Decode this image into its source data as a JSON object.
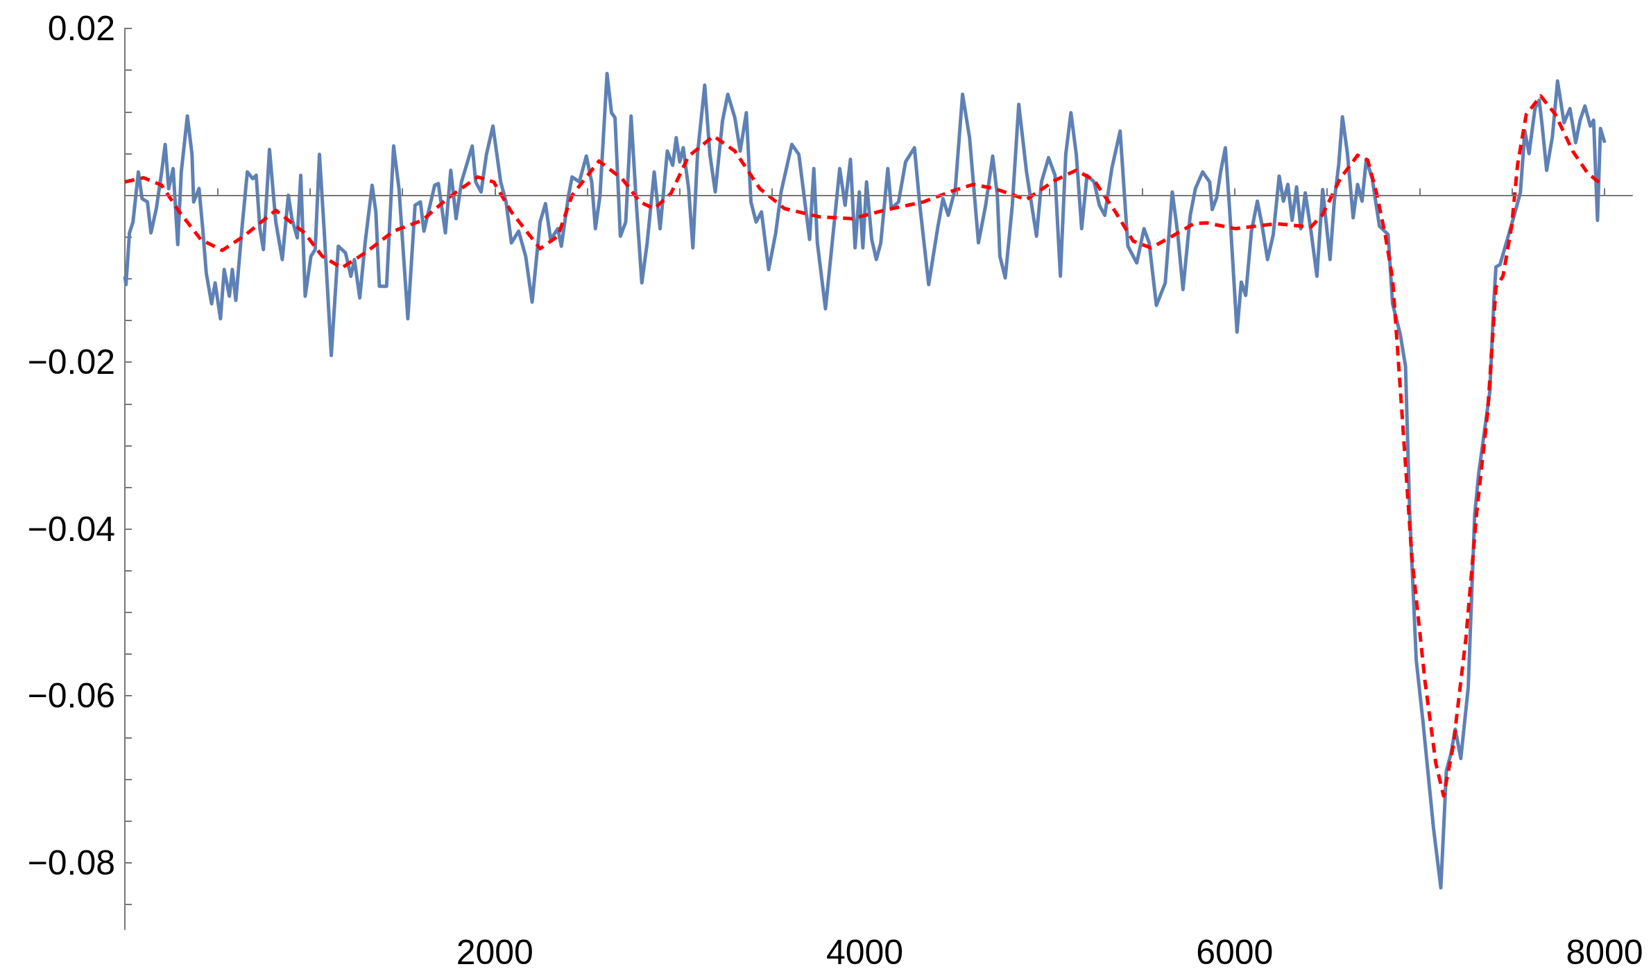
{
  "chart_data": {
    "type": "line",
    "marker": "none",
    "xlim": [
      0,
      8150
    ],
    "ylim": [
      -0.088,
      0.02
    ],
    "xticks": [
      {
        "value": 500,
        "label": null
      },
      {
        "value": 1000,
        "label": null
      },
      {
        "value": 1500,
        "label": null
      },
      2000,
      {
        "value": 2500,
        "label": null
      },
      {
        "value": 3000,
        "label": null
      },
      {
        "value": 3500,
        "label": null
      },
      4000,
      {
        "value": 4500,
        "label": null
      },
      {
        "value": 5000,
        "label": null
      },
      {
        "value": 5500,
        "label": null
      },
      6000,
      {
        "value": 6500,
        "label": null
      },
      {
        "value": 7000,
        "label": null
      },
      {
        "value": 7500,
        "label": null
      },
      8000
    ],
    "yticks": [
      0.02,
      {
        "value": 0.015,
        "label": null
      },
      {
        "value": 0.01,
        "label": null
      },
      {
        "value": 0.005,
        "label": null
      },
      {
        "value": 0,
        "label": null
      },
      {
        "value": -0.005,
        "label": null
      },
      {
        "value": -0.01,
        "label": null
      },
      {
        "value": -0.015,
        "label": null
      },
      {
        "value": -0.02,
        "label": "−0.02"
      },
      {
        "value": -0.025,
        "label": null
      },
      {
        "value": -0.03,
        "label": null
      },
      {
        "value": -0.035,
        "label": null
      },
      {
        "value": -0.04,
        "label": "−0.04"
      },
      {
        "value": -0.045,
        "label": null
      },
      {
        "value": -0.05,
        "label": null
      },
      {
        "value": -0.055,
        "label": null
      },
      {
        "value": -0.06,
        "label": "−0.06"
      },
      {
        "value": -0.065,
        "label": null
      },
      {
        "value": -0.07,
        "label": null
      },
      {
        "value": -0.075,
        "label": null
      },
      {
        "value": -0.08,
        "label": "−0.08"
      },
      {
        "value": -0.085,
        "label": null
      }
    ],
    "series": [
      {
        "color": "#5e81b5",
        "line_style": "solid",
        "x": [
          0,
          6,
          25,
          44,
          73,
          93,
          122,
          141,
          170,
          199,
          218,
          237,
          261,
          286,
          305,
          338,
          363,
          372,
          401,
          421,
          440,
          469,
          488,
          517,
          537,
          565,
          581,
          600,
          633,
          662,
          691,
          710,
          730,
          749,
          782,
          816,
          851,
          884,
          903,
          932,
          951,
          975,
          1006,
          1029,
          1052,
          1077,
          1116,
          1154,
          1193,
          1222,
          1241,
          1270,
          1299,
          1337,
          1357,
          1376,
          1415,
          1453,
          1482,
          1530,
          1569,
          1598,
          1617,
          1675,
          1695,
          1733,
          1762,
          1791,
          1820,
          1878,
          1897,
          1926,
          1955,
          1990,
          2032,
          2061,
          2090,
          2129,
          2167,
          2202,
          2245,
          2274,
          2302,
          2341,
          2360,
          2399,
          2418,
          2457,
          2495,
          2524,
          2544,
          2569,
          2607,
          2631,
          2650,
          2679,
          2708,
          2737,
          2766,
          2795,
          2824,
          2862,
          2894,
          2933,
          2962,
          2981,
          3000,
          3019,
          3048,
          3071,
          3096,
          3135,
          3163,
          3192,
          3231,
          3260,
          3298,
          3327,
          3360,
          3385,
          3413,
          3442,
          3481,
          3519,
          3548,
          3606,
          3644,
          3702,
          3725,
          3744,
          3788,
          3817,
          3865,
          3894,
          3923,
          3948,
          3971,
          3990,
          4010,
          4038,
          4063,
          4087,
          4125,
          4144,
          4183,
          4221,
          4269,
          4298,
          4346,
          4394,
          4423,
          4452,
          4490,
          4529,
          4567,
          4615,
          4654,
          4692,
          4717,
          4731,
          4760,
          4798,
          4833,
          4875,
          4929,
          4956,
          4994,
          5029,
          5058,
          5087,
          5115,
          5144,
          5173,
          5202,
          5240,
          5269,
          5298,
          5336,
          5381,
          5423,
          5471,
          5510,
          5538,
          5577,
          5625,
          5663,
          5692,
          5721,
          5760,
          5788,
          5827,
          5865,
          5879,
          5903,
          5926,
          5950,
          5973,
          6013,
          6036,
          6060,
          6091,
          6123,
          6146,
          6178,
          6209,
          6241,
          6264,
          6288,
          6311,
          6335,
          6358,
          6382,
          6413,
          6445,
          6476,
          6516,
          6539,
          6563,
          6583,
          6610,
          6641,
          6665,
          6689,
          6712,
          6744,
          6783,
          6830,
          6854,
          6896,
          6924,
          6947,
          6982,
          7018,
          7076,
          7115,
          7145,
          7169,
          7193,
          7223,
          7263,
          7298,
          7320,
          7344,
          7380,
          7402,
          7413,
          7435,
          7482,
          7514,
          7545,
          7569,
          7592,
          7624,
          7647,
          7663,
          7687,
          7718,
          7746,
          7781,
          7813,
          7844,
          7868,
          7894,
          7923,
          7941,
          7962,
          7978,
          8001
        ],
        "values": [
          -0.0097,
          -0.0107,
          -0.0045,
          -0.0032,
          0.0028,
          -0.0004,
          -0.0008,
          -0.0045,
          -0.0016,
          0.0028,
          0.0061,
          0.0008,
          0.0032,
          -0.0059,
          0.0028,
          0.0095,
          0.0049,
          -0.0008,
          0.0008,
          -0.004,
          -0.0093,
          -0.013,
          -0.0105,
          -0.0148,
          -0.0089,
          -0.0121,
          -0.0089,
          -0.0126,
          -0.004,
          0.0028,
          0.002,
          0.0024,
          -0.004,
          -0.0065,
          0.0055,
          -0.0032,
          -0.0077,
          0,
          -0.0028,
          -0.0051,
          0.0024,
          -0.0121,
          -0.0073,
          -0.0065,
          0.0049,
          -0.004,
          -0.0192,
          -0.0061,
          -0.0069,
          -0.0097,
          -0.0077,
          -0.0123,
          -0.0057,
          0.0012,
          -0.002,
          -0.0109,
          -0.0109,
          0.0059,
          0.0008,
          -0.0148,
          -0.0012,
          -0.0008,
          -0.0043,
          0.0012,
          0.0014,
          -0.0045,
          0.003,
          -0.0028,
          0.0016,
          0.0059,
          0.0016,
          0.0004,
          0.0049,
          0.0083,
          0.0016,
          -0.0008,
          -0.0057,
          -0.0043,
          -0.0073,
          -0.0128,
          -0.0032,
          -0.001,
          -0.0053,
          -0.004,
          -0.0061,
          0,
          0.0022,
          0.0016,
          0.0047,
          0.0016,
          -0.004,
          0,
          0.0146,
          0.0099,
          0.0093,
          -0.0049,
          -0.0032,
          0.0095,
          -0.0012,
          -0.0105,
          -0.0057,
          0.0028,
          -0.004,
          0.0053,
          0.0036,
          0.0069,
          0.004,
          0.0057,
          0.0008,
          -0.0063,
          0.0049,
          0.0132,
          0.0049,
          0.0004,
          0.0089,
          0.0121,
          0.0093,
          0.0053,
          0.0099,
          -0.0008,
          -0.0032,
          -0.002,
          -0.0089,
          -0.0045,
          0.0004,
          0.0061,
          0.0049,
          -0.0053,
          0.0032,
          -0.0057,
          -0.0136,
          -0.0073,
          0.0032,
          -0.0012,
          0.0043,
          -0.0063,
          0.0004,
          -0.0063,
          0.0016,
          -0.0053,
          -0.0077,
          -0.0057,
          0.0032,
          -0.0016,
          -0.0008,
          0.004,
          0.0057,
          -0.0012,
          -0.0107,
          -0.004,
          -0.0004,
          -0.0024,
          0.0008,
          0.0121,
          0.0069,
          -0.0057,
          -0.0012,
          0.0047,
          0,
          -0.0073,
          -0.0099,
          -0.0012,
          0.0109,
          0.0028,
          -0.0049,
          0.0016,
          0.0045,
          0.0024,
          -0.0097,
          0.0049,
          0.0099,
          0.0049,
          -0.004,
          0.0024,
          0.0016,
          -0.0012,
          -0.0024,
          0.0032,
          0.0077,
          -0.0061,
          -0.0081,
          -0.004,
          -0.0057,
          -0.0132,
          -0.0105,
          0.0004,
          -0.0045,
          -0.0113,
          -0.0024,
          0.0008,
          0.0028,
          0.0016,
          -0.0017,
          -0.0003,
          0.003,
          0.0057,
          -0.0017,
          -0.0164,
          -0.0104,
          -0.012,
          -0.0043,
          -0.0007,
          -0.0033,
          -0.0077,
          -0.0047,
          0.0023,
          -0.0007,
          0.0013,
          -0.003,
          0.001,
          -0.004,
          0.0003,
          -0.0043,
          -0.0097,
          0.0007,
          -0.0077,
          -0.0007,
          0.0037,
          0.0094,
          0.005,
          -0.0027,
          0.0013,
          -0.0007,
          0.0043,
          0.002,
          -0.0037,
          -0.0047,
          -0.013,
          -0.0167,
          -0.0205,
          -0.0383,
          -0.0557,
          -0.063,
          -0.076,
          -0.083,
          -0.069,
          -0.067,
          -0.064,
          -0.0675,
          -0.059,
          -0.0383,
          -0.0333,
          -0.0294,
          -0.0235,
          -0.0125,
          -0.0086,
          -0.0083,
          -0.0047,
          -0.0022,
          0.0003,
          0.0077,
          0.005,
          0.0104,
          0.0114,
          0.0083,
          0.003,
          0.007,
          0.0137,
          0.0087,
          0.0104,
          0.0063,
          0.009,
          0.0107,
          0.0083,
          0.009,
          -0.003,
          0.008,
          0.0063
        ]
      },
      {
        "color": "#ff0000",
        "line_style": "dashed",
        "x": [
          0,
          102,
          199,
          295,
          411,
          527,
          643,
          816,
          971,
          1067,
          1173,
          1299,
          1453,
          1608,
          1743,
          1907,
          1994,
          2090,
          2245,
          2341,
          2418,
          2563,
          2688,
          2785,
          2862,
          2952,
          3048,
          3183,
          3298,
          3433,
          3567,
          3760,
          3933,
          4106,
          4317,
          4471,
          4587,
          4702,
          4875,
          5029,
          5144,
          5240,
          5356,
          5452,
          5548,
          5663,
          5779,
          5848,
          6005,
          6225,
          6413,
          6476,
          6571,
          6665,
          6720,
          6767,
          6814,
          6854,
          6889,
          6958,
          7029,
          7088,
          7130,
          7182,
          7251,
          7309,
          7368,
          7413,
          7451,
          7498,
          7530,
          7577,
          7655,
          7734,
          7828,
          7907,
          7962,
          8001
        ],
        "values": [
          0.0016,
          0.0021,
          0.0012,
          -0.002,
          -0.0053,
          -0.0066,
          -0.0049,
          -0.0018,
          -0.0045,
          -0.0073,
          -0.0087,
          -0.0069,
          -0.0043,
          -0.003,
          -0.0004,
          0.0022,
          0.0016,
          -0.002,
          -0.0064,
          -0.0049,
          0,
          0.0041,
          0.002,
          -0.0008,
          -0.0016,
          0.0002,
          0.0047,
          0.0071,
          0.0053,
          0.0008,
          -0.0016,
          -0.0026,
          -0.0028,
          -0.0018,
          -0.0008,
          0.0005,
          0.0013,
          0.0008,
          -0.0005,
          0.0018,
          0.003,
          0.0018,
          -0.002,
          -0.0055,
          -0.0063,
          -0.0049,
          -0.0034,
          -0.0033,
          -0.004,
          -0.0034,
          -0.0038,
          -0.0023,
          0.002,
          0.0048,
          0.0042,
          0.0003,
          -0.0047,
          -0.01,
          -0.021,
          -0.0433,
          -0.0582,
          -0.0681,
          -0.072,
          -0.066,
          -0.053,
          -0.038,
          -0.026,
          -0.011,
          -0.0097,
          -0.0037,
          0.0037,
          0.0097,
          0.0119,
          0.0097,
          0.0053,
          0.0027,
          0.0017,
          0.0016
        ]
      }
    ]
  }
}
